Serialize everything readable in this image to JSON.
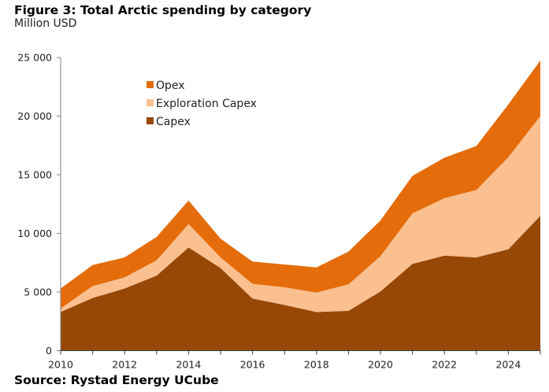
{
  "header": {
    "title": "Figure 3: Total Arctic spending by category",
    "subtitle": "Million USD"
  },
  "footer": {
    "source": "Source: Rystad Energy UCube"
  },
  "chart_data": {
    "type": "area",
    "stacked": true,
    "title": "Figure 3: Total Arctic spending by category",
    "subtitle": "Million USD",
    "xlabel": "",
    "ylabel": "Million USD",
    "x": [
      2010,
      2011,
      2012,
      2013,
      2014,
      2015,
      2016,
      2017,
      2018,
      2019,
      2020,
      2021,
      2022,
      2023,
      2024,
      2025
    ],
    "x_tick_labels": [
      "2010",
      "2012",
      "2014",
      "2016",
      "2018",
      "2020",
      "2022",
      "2024"
    ],
    "x_range": [
      2010,
      2025
    ],
    "ylim": [
      0,
      25000
    ],
    "y_ticks": [
      0,
      5000,
      10000,
      15000,
      20000,
      25000
    ],
    "y_tick_labels": [
      "0",
      "5 000",
      "10 000",
      "15 000",
      "20 000",
      "25 000"
    ],
    "grid": false,
    "legend_position": "top-left",
    "series": [
      {
        "name": "Capex",
        "color": "#974806",
        "values": [
          3300,
          4500,
          5300,
          6400,
          8800,
          7050,
          4450,
          3900,
          3300,
          3400,
          5050,
          7400,
          8100,
          7950,
          8650,
          11500
        ]
      },
      {
        "name": "Exploration Capex",
        "color": "#FAC090",
        "values": [
          300,
          1000,
          950,
          1300,
          2000,
          900,
          1250,
          1500,
          1650,
          2250,
          3000,
          4300,
          4900,
          5750,
          7850,
          8500
        ]
      },
      {
        "name": "Opex",
        "color": "#E46C0A",
        "values": [
          1700,
          1800,
          1700,
          2000,
          2000,
          1600,
          1900,
          1950,
          2150,
          2800,
          3050,
          3200,
          3450,
          3750,
          4500,
          4750
        ]
      }
    ],
    "legend_order": [
      "Opex",
      "Exploration Capex",
      "Capex"
    ]
  }
}
